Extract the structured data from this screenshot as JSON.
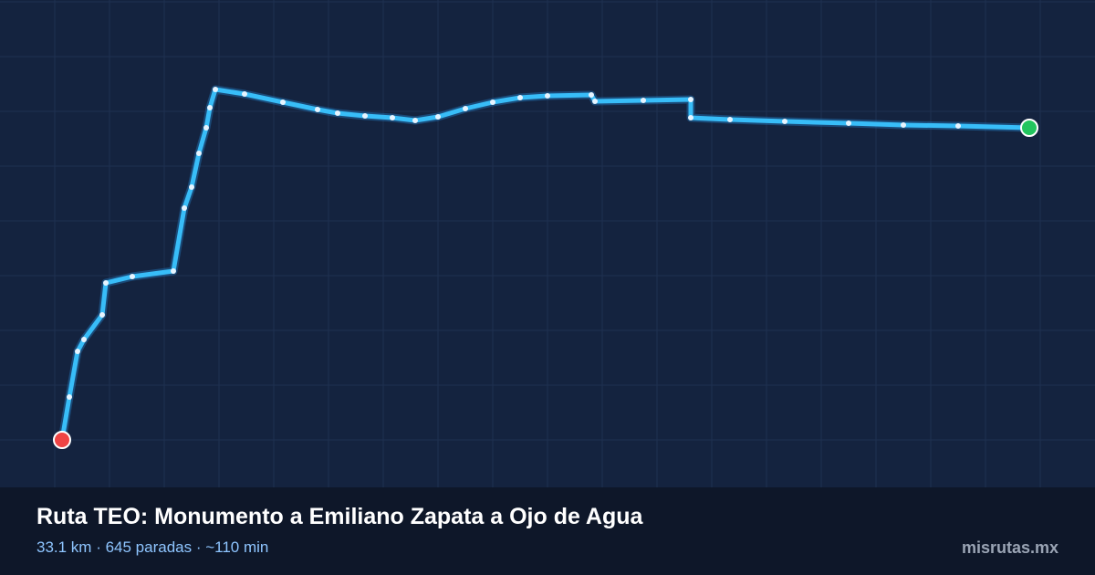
{
  "header": {
    "title": "Ruta TEO: Monumento a Emiliano Zapata a Ojo de Agua",
    "stats": "33.1 km · 645 paradas · ~110 min",
    "brand": "misrutas.mx"
  }
}
